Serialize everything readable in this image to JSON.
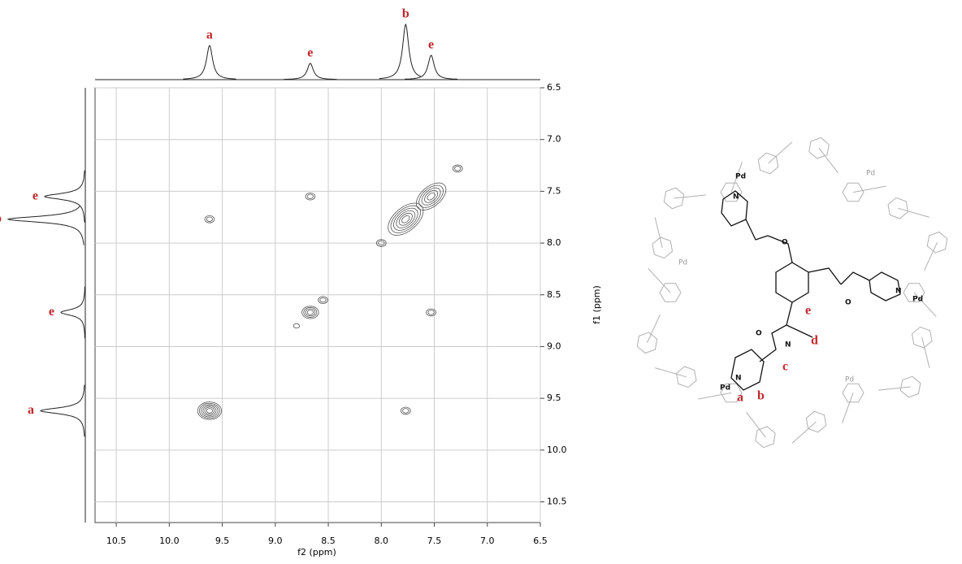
{
  "chart_data": {
    "type": "contour",
    "xlabel": "f2 (ppm)",
    "ylabel": "f1 (ppm)",
    "xlim": [
      10.7,
      6.5
    ],
    "ylim": [
      6.5,
      10.7
    ],
    "xticks": [
      10.5,
      {
        "value": 10,
        "label": "10.0"
      },
      9.5,
      {
        "value": 9,
        "label": "9.0"
      },
      8.5,
      {
        "value": 8,
        "label": "8.0"
      },
      7.5,
      {
        "value": 7,
        "label": "7.0"
      },
      6.5
    ],
    "yticks": [
      6.5,
      {
        "value": 7,
        "label": "7.0"
      },
      7.5,
      {
        "value": 8,
        "label": "8.0"
      },
      8.5,
      {
        "value": 9,
        "label": "9.0"
      },
      9.5,
      {
        "value": 10,
        "label": "10.0"
      },
      10.5
    ],
    "grid": true,
    "color": "#555555",
    "peaks": {
      "x": [
        9.62,
        8.67,
        7.77,
        7.53,
        9.62,
        7.77,
        8.67,
        7.53,
        8.55,
        8.0,
        7.28,
        8.8
      ],
      "y": [
        9.62,
        8.67,
        7.77,
        7.55,
        7.77,
        9.62,
        7.55,
        8.67,
        8.55,
        8.0,
        7.28,
        8.8
      ],
      "levels": [
        6,
        4,
        6,
        5,
        2,
        2,
        2,
        2,
        2,
        2,
        2,
        1
      ]
    },
    "top_projection": {
      "x": [
        9.62,
        8.67,
        7.77,
        7.53
      ],
      "heights": [
        42,
        20,
        68,
        30
      ],
      "labels": [
        "a",
        "e",
        "b",
        "e"
      ]
    },
    "side_projection": {
      "y": [
        9.62,
        8.67,
        7.77,
        7.55
      ],
      "heights": [
        55,
        30,
        95,
        50
      ],
      "labels": [
        "a",
        "e",
        "b",
        "e"
      ]
    }
  },
  "structure": {
    "labels": [
      "Pd",
      "Pd",
      "Pd",
      "Pd",
      "Pd",
      "Pd",
      "N",
      "N",
      "N",
      "N",
      "O",
      "O",
      "O",
      "a",
      "b",
      "c",
      "d",
      "e"
    ]
  }
}
